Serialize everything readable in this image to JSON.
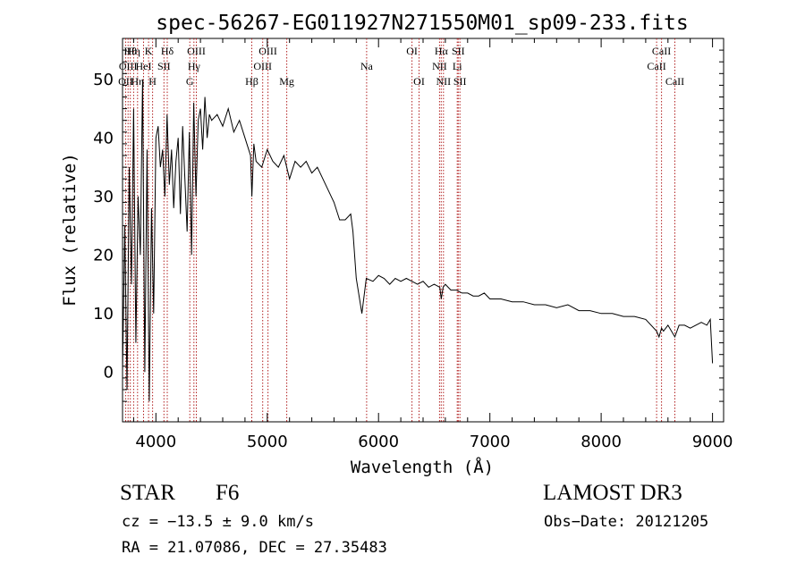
{
  "chart_data": {
    "type": "line",
    "title": "spec-56267-EG011927N271550M01_sp09-233.fits",
    "xlabel": "Wavelength (Å)",
    "ylabel": "Flux (relative)",
    "xlim": [
      3700,
      9100
    ],
    "ylim": [
      -8.5,
      57
    ],
    "xticks": [
      4000,
      5000,
      6000,
      7000,
      8000,
      9000
    ],
    "yticks": [
      0,
      10,
      20,
      30,
      40,
      50
    ],
    "grid": false,
    "series": [
      {
        "name": "flux",
        "x": [
          3700,
          3720,
          3740,
          3760,
          3780,
          3800,
          3820,
          3840,
          3860,
          3880,
          3900,
          3920,
          3940,
          3960,
          3980,
          4000,
          4020,
          4040,
          4060,
          4080,
          4100,
          4120,
          4140,
          4160,
          4180,
          4200,
          4220,
          4240,
          4260,
          4280,
          4300,
          4320,
          4340,
          4360,
          4380,
          4400,
          4420,
          4440,
          4460,
          4480,
          4500,
          4550,
          4600,
          4650,
          4700,
          4750,
          4800,
          4850,
          4862,
          4880,
          4900,
          4950,
          5000,
          5050,
          5100,
          5150,
          5200,
          5250,
          5300,
          5350,
          5400,
          5450,
          5500,
          5550,
          5600,
          5650,
          5700,
          5750,
          5770,
          5800,
          5850,
          5890,
          5950,
          6000,
          6050,
          6100,
          6150,
          6200,
          6250,
          6300,
          6350,
          6400,
          6450,
          6500,
          6550,
          6563,
          6580,
          6600,
          6650,
          6700,
          6750,
          6800,
          6850,
          6900,
          6950,
          7000,
          7100,
          7200,
          7300,
          7400,
          7500,
          7600,
          7700,
          7800,
          7900,
          8000,
          8100,
          8200,
          8300,
          8400,
          8498,
          8520,
          8542,
          8560,
          8600,
          8662,
          8700,
          8750,
          8800,
          8850,
          8900,
          8950,
          8980,
          9000
        ],
        "values": [
          0,
          25,
          -3,
          35,
          15,
          45,
          5,
          30,
          20,
          50,
          0,
          38,
          -5,
          28,
          10,
          40,
          42,
          35,
          38,
          30,
          44,
          32,
          38,
          28,
          36,
          40,
          27,
          42,
          33,
          24,
          41,
          20,
          46,
          30,
          43,
          45,
          38,
          47,
          40,
          44,
          43,
          44,
          42,
          45,
          41,
          43,
          40,
          37,
          30,
          39,
          36,
          35,
          38,
          36,
          35,
          37,
          33,
          36,
          35,
          36,
          34,
          35,
          33,
          31,
          29,
          26,
          26,
          27,
          24,
          16,
          10,
          16,
          15.5,
          16.5,
          16,
          15,
          16,
          15.5,
          16,
          15.5,
          15,
          15.5,
          14.5,
          15,
          14.5,
          12.5,
          14.5,
          15,
          14,
          14,
          13.5,
          13.5,
          13,
          13,
          13.5,
          12.5,
          12.5,
          12,
          12,
          11.5,
          11.5,
          11,
          11.5,
          10.5,
          10.5,
          10,
          10,
          9.5,
          9.5,
          9,
          7,
          6,
          7.5,
          7,
          8,
          6,
          8,
          8,
          7.5,
          8,
          8.5,
          8,
          9,
          1.5
        ]
      }
    ],
    "lines": [
      {
        "w": 3727,
        "label": "OII",
        "row": 3
      },
      {
        "w": 3750,
        "label": "OIII",
        "row": 2
      },
      {
        "w": 3770,
        "label": "Hθ",
        "row": 1
      },
      {
        "w": 3800,
        "label": "Hη",
        "row": 1
      },
      {
        "w": 3835,
        "label": "Hη",
        "row": 3
      },
      {
        "w": 3889,
        "label": "HeI",
        "row": 2
      },
      {
        "w": 3934,
        "label": "K",
        "row": 1
      },
      {
        "w": 3970,
        "label": "H",
        "row": 3
      },
      {
        "w": 4072,
        "label": "SII",
        "row": 2
      },
      {
        "w": 4102,
        "label": "Hδ",
        "row": 1
      },
      {
        "w": 4304,
        "label": "G",
        "row": 3
      },
      {
        "w": 4341,
        "label": "Hγ",
        "row": 2
      },
      {
        "w": 4363,
        "label": "OIII",
        "row": 1
      },
      {
        "w": 4861,
        "label": "Hβ",
        "row": 3
      },
      {
        "w": 4959,
        "label": "OIII",
        "row": 2
      },
      {
        "w": 5007,
        "label": "OIII",
        "row": 1
      },
      {
        "w": 5175,
        "label": "Mg",
        "row": 3
      },
      {
        "w": 5893,
        "label": "Na",
        "row": 2
      },
      {
        "w": 6300,
        "label": "OI",
        "row": 1
      },
      {
        "w": 6364,
        "label": "OI",
        "row": 3
      },
      {
        "w": 6548,
        "label": "NII",
        "row": 2
      },
      {
        "w": 6563,
        "label": "Hα",
        "row": 1
      },
      {
        "w": 6583,
        "label": "NII",
        "row": 3
      },
      {
        "w": 6707,
        "label": "Li",
        "row": 2
      },
      {
        "w": 6716,
        "label": "SII",
        "row": 1
      },
      {
        "w": 6731,
        "label": "SII",
        "row": 3
      },
      {
        "w": 8498,
        "label": "CaII",
        "row": 2
      },
      {
        "w": 8542,
        "label": "CaII",
        "row": 1
      },
      {
        "w": 8662,
        "label": "CaII",
        "row": 3
      }
    ]
  },
  "info": {
    "class": "STAR",
    "subclass": "F6",
    "cz": "cz = −13.5 ± 9.0 km/s",
    "radec": "RA =  21.07086, DEC =  27.35483",
    "survey": "LAMOST DR3",
    "obsdate": "Obs−Date: 20121205"
  }
}
